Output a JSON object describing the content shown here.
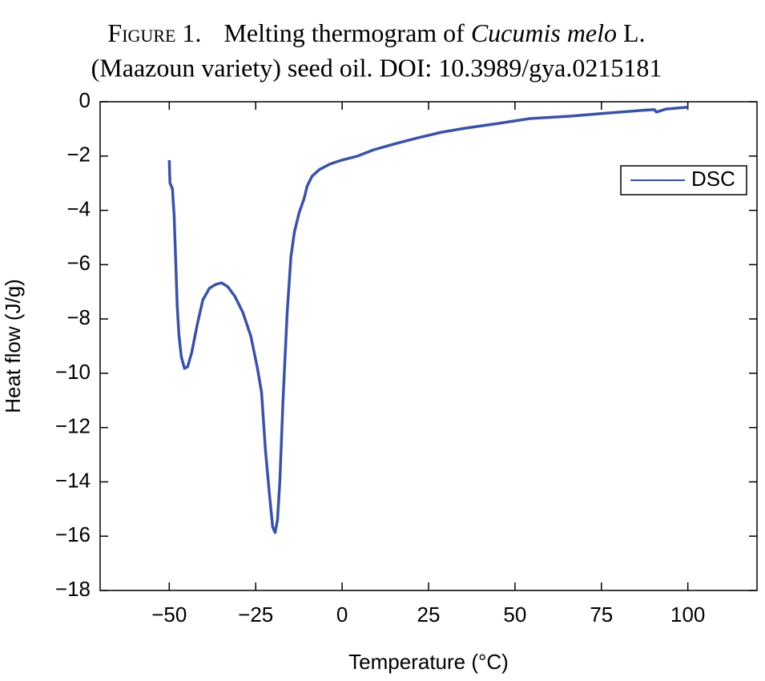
{
  "chart_data": {
    "type": "line",
    "figure_label": "Figure 1.",
    "title": [
      "Melting thermogram of ",
      "Cucumis melo",
      " L.",
      "(Maazoun variety) seed oil. DOI: 10.3989/gya.0215181"
    ],
    "xlabel": "Temperature (°C)",
    "ylabel": "Heat flow (J/g)",
    "xlim": [
      -70,
      120
    ],
    "ylim": [
      -18,
      0
    ],
    "xticks": [
      {
        "value": -50,
        "label": "−50"
      },
      {
        "value": -25,
        "label": "−25"
      },
      0,
      25,
      50,
      75,
      100
    ],
    "yticks": [
      0,
      {
        "value": -2,
        "label": "−2"
      },
      {
        "value": -4,
        "label": "−4"
      },
      {
        "value": -6,
        "label": "−6"
      },
      {
        "value": -8,
        "label": "−8"
      },
      {
        "value": -10,
        "label": "−10"
      },
      {
        "value": -12,
        "label": "−12"
      },
      {
        "value": -14,
        "label": "−14"
      },
      {
        "value": -16,
        "label": "−16"
      },
      {
        "value": -18,
        "label": "−18"
      }
    ],
    "grid": false,
    "legend": "upper right",
    "x": [
      -50,
      -49.8,
      -49.1,
      -48.6,
      -48.1,
      -47.7,
      -47.2,
      -46.5,
      -45.6,
      -44.7,
      -43.5,
      -41.9,
      -40.3,
      -38.4,
      -36.6,
      -34.9,
      -33.1,
      -31.0,
      -28.7,
      -26.4,
      -24.5,
      -23.3,
      -22.2,
      -21.0,
      -20.1,
      -19.4,
      -18.7,
      -18.0,
      -17.1,
      -15.9,
      -14.8,
      -13.8,
      -12.4,
      -11.0,
      -10.1,
      -8.7,
      -6.6,
      -3.6,
      -0.15,
      4.5,
      9.1,
      14.9,
      21.9,
      28.8,
      35.8,
      45.1,
      54.3,
      65.9,
      77.5,
      86.8,
      90.3,
      90.9,
      93.7,
      100
    ],
    "series": [
      {
        "name": "DSC",
        "color": "#3a52a6",
        "values": [
          -2.15,
          -3.0,
          -3.2,
          -4.2,
          -6.0,
          -7.5,
          -8.6,
          -9.4,
          -9.82,
          -9.76,
          -9.23,
          -8.2,
          -7.3,
          -6.87,
          -6.73,
          -6.67,
          -6.81,
          -7.17,
          -7.76,
          -8.64,
          -9.82,
          -10.7,
          -12.8,
          -14.5,
          -15.66,
          -15.87,
          -15.4,
          -13.95,
          -11.0,
          -7.76,
          -5.7,
          -4.8,
          -4.07,
          -3.57,
          -3.1,
          -2.74,
          -2.5,
          -2.3,
          -2.15,
          -2.0,
          -1.77,
          -1.56,
          -1.33,
          -1.12,
          -0.97,
          -0.8,
          -0.62,
          -0.53,
          -0.41,
          -0.32,
          -0.29,
          -0.38,
          -0.27,
          -0.2
        ]
      }
    ]
  }
}
